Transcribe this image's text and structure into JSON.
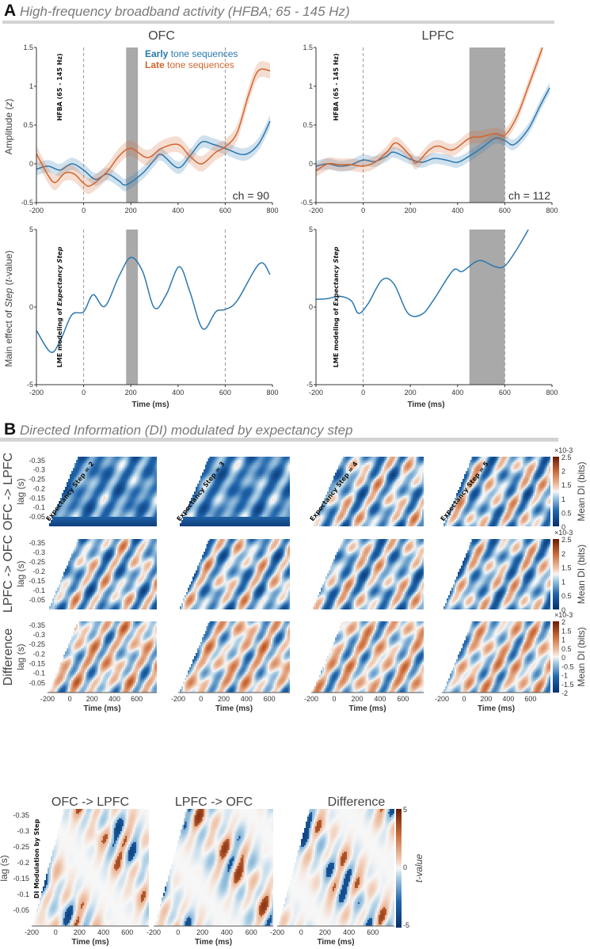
{
  "panel_a": {
    "label": "A",
    "title": "High-frequency broadband activity (HFBA; 65 - 145 Hz)",
    "legend": {
      "early_bold": "Early",
      "early_rest": " tone sequences",
      "late_bold": "Late",
      "late_rest": " tone sequences"
    },
    "ylabel_top": {
      "p1": "Amplitude (",
      "p2": "z",
      "p3": ")"
    },
    "ylabel_bottom": {
      "p1": "Main effect of ",
      "p2": "Step",
      "p3": " (",
      "p4": "t",
      "p5": "-value)"
    },
    "inset_top": "HFBA (65 - 145 Hz)",
    "inset_bottom": {
      "p1": "LME modeling of ",
      "p2": "Expectancy Step"
    },
    "xlabel": "Time (ms)"
  },
  "panel_b": {
    "label": "B",
    "title": "Directed Information (DI) modulated by expectancy step",
    "row_labels": [
      "OFC -> LPFC",
      "LPFC -> OFC",
      "Difference"
    ],
    "lag_label": "lag (s)",
    "step_labels": [
      "Expectancy Step = 2",
      "Expectancy Step = 3",
      "Expectancy Step = 4",
      "Expectancy Step = 5"
    ],
    "colorbar_label": "Mean DI (bits)",
    "colorbar_exponent": "×10-3",
    "xlabel": "Time (ms)",
    "bottom": {
      "titles": [
        "OFC -> LPFC",
        "LPFC -> OFC",
        "Difference"
      ],
      "inset": "DI Modulation by Step",
      "lag_label": "lag (s)",
      "colorbar_label": "t-value"
    }
  },
  "colors": {
    "early": "#2a78b0",
    "late": "#d2652e",
    "sig_window": "#a9a9a9",
    "dash": "#999999"
  },
  "chart_data": [
    {
      "id": "ofc_hfba",
      "type": "line",
      "title": "OFC",
      "annotation": "ch = 90",
      "xlim": [
        -200,
        800
      ],
      "ylim": [
        -0.5,
        1.5
      ],
      "xticks": [
        -200,
        0,
        200,
        400,
        600,
        800
      ],
      "yticks": [
        -0.5,
        0,
        0.5,
        1,
        1.5
      ],
      "ytick_labels": [
        "-0.5",
        "0",
        "0.5",
        "1",
        "1.5"
      ],
      "event_lines": [
        0,
        600
      ],
      "sig_window": [
        180,
        230
      ],
      "series": [
        {
          "name": "Early tone sequences",
          "color": "#2a78b0",
          "sem": 0.08,
          "x": [
            -200,
            -150,
            -100,
            -50,
            0,
            50,
            100,
            150,
            180,
            250,
            300,
            330,
            400,
            450,
            500,
            550,
            600,
            680,
            740,
            790
          ],
          "y": [
            -0.07,
            -0.03,
            -0.08,
            0.0,
            -0.08,
            -0.2,
            -0.13,
            -0.22,
            -0.27,
            -0.12,
            0.05,
            0.12,
            -0.05,
            0.1,
            0.28,
            0.25,
            0.2,
            0.12,
            0.25,
            0.55
          ]
        },
        {
          "name": "Late tone sequences",
          "color": "#d2652e",
          "sem": 0.1,
          "x": [
            -200,
            -150,
            -120,
            -80,
            -40,
            0,
            30,
            100,
            150,
            200,
            270,
            330,
            400,
            450,
            500,
            560,
            600,
            650,
            700,
            740,
            790
          ],
          "y": [
            0.13,
            -0.15,
            -0.24,
            -0.12,
            -0.13,
            -0.25,
            -0.28,
            -0.1,
            0.1,
            0.2,
            0.08,
            0.2,
            0.25,
            0.1,
            0.0,
            0.15,
            0.22,
            0.4,
            0.9,
            1.2,
            1.2
          ]
        }
      ]
    },
    {
      "id": "lpfc_hfba",
      "type": "line",
      "title": "LPFC",
      "annotation": "ch = 112",
      "xlim": [
        -200,
        800
      ],
      "ylim": [
        -0.5,
        1.5
      ],
      "xticks": [
        -200,
        0,
        200,
        400,
        600,
        800
      ],
      "yticks": [
        -0.5,
        0,
        0.5,
        1,
        1.5
      ],
      "ytick_labels": [
        "-0.5",
        "0",
        "0.5",
        "1",
        "1.5"
      ],
      "event_lines": [
        0,
        600
      ],
      "sig_window": [
        450,
        600
      ],
      "series": [
        {
          "name": "Early tone sequences",
          "color": "#2a78b0",
          "sem": 0.07,
          "x": [
            -200,
            -150,
            -100,
            -50,
            0,
            50,
            100,
            130,
            200,
            250,
            300,
            350,
            400,
            450,
            500,
            560,
            600,
            640,
            700,
            750,
            790
          ],
          "y": [
            -0.03,
            0.0,
            -0.03,
            -0.01,
            0.05,
            0.03,
            0.1,
            0.15,
            0.06,
            0.02,
            0.07,
            0.05,
            0.02,
            0.1,
            0.2,
            0.33,
            0.3,
            0.25,
            0.45,
            0.75,
            0.98
          ]
        },
        {
          "name": "Late tone sequences",
          "color": "#d2652e",
          "sem": 0.08,
          "x": [
            -200,
            -150,
            -100,
            -50,
            0,
            50,
            100,
            140,
            200,
            225,
            280,
            320,
            380,
            450,
            500,
            560,
            600,
            650,
            700,
            760
          ],
          "y": [
            -0.09,
            0.0,
            -0.01,
            -0.01,
            -0.03,
            0.02,
            0.15,
            0.27,
            0.1,
            0.01,
            0.18,
            0.23,
            0.18,
            0.33,
            0.35,
            0.39,
            0.37,
            0.6,
            1.0,
            1.5
          ]
        }
      ]
    },
    {
      "id": "ofc_lme",
      "type": "line",
      "title": "",
      "xlabel": "Time (ms)",
      "xlim": [
        -200,
        800
      ],
      "ylim": [
        -5,
        5
      ],
      "xticks": [
        -200,
        0,
        200,
        400,
        600,
        800
      ],
      "yticks": [
        -5,
        0,
        5
      ],
      "ytick_labels": [
        "-5",
        "0",
        "5"
      ],
      "event_lines": [
        0,
        600
      ],
      "sig_window": [
        180,
        230
      ],
      "series": [
        {
          "name": "Main effect of Step",
          "color": "#2a78b0",
          "sem": 0,
          "x": [
            -200,
            -140,
            -100,
            -50,
            0,
            40,
            90,
            150,
            200,
            250,
            300,
            350,
            405,
            450,
            505,
            560,
            600,
            650,
            745,
            790
          ],
          "y": [
            -1.5,
            -2.9,
            -2.2,
            -0.5,
            -0.3,
            0.8,
            0.05,
            2.0,
            3.2,
            2.3,
            -0.05,
            0.8,
            2.6,
            1.0,
            -1.4,
            -0.3,
            -0.15,
            0.4,
            2.8,
            2.1
          ]
        }
      ]
    },
    {
      "id": "lpfc_lme",
      "type": "line",
      "title": "",
      "xlabel": "Time (ms)",
      "xlim": [
        -200,
        800
      ],
      "ylim": [
        -5,
        5
      ],
      "xticks": [
        -200,
        0,
        200,
        400,
        600,
        800
      ],
      "yticks": [
        -5,
        0,
        5
      ],
      "ytick_labels": [
        "-5",
        "0",
        "5"
      ],
      "event_lines": [
        0,
        600
      ],
      "sig_window": [
        450,
        600
      ],
      "series": [
        {
          "name": "Main effect of Step",
          "color": "#2a78b0",
          "sem": 0,
          "x": [
            -200,
            -150,
            -100,
            -50,
            -20,
            20,
            80,
            130,
            190,
            250,
            300,
            380,
            420,
            490,
            560,
            600,
            650,
            700
          ],
          "y": [
            0.5,
            0.55,
            0.7,
            0.4,
            -0.4,
            0.2,
            1.75,
            1.5,
            -0.4,
            -0.45,
            0.5,
            2.35,
            2.3,
            3.0,
            2.6,
            2.65,
            3.7,
            5.0
          ]
        }
      ]
    },
    {
      "id": "di_heatmaps",
      "type": "heatmap",
      "rows": [
        "OFC -> LPFC",
        "LPFC -> OFC",
        "Difference"
      ],
      "columns": [
        "Expectancy Step = 2",
        "Expectancy Step = 3",
        "Expectancy Step = 4",
        "Expectancy Step = 5"
      ],
      "xlabel": "Time (ms)",
      "ylabel": "lag (s)",
      "xlim": [
        -200,
        780
      ],
      "ylim": [
        -0.37,
        0
      ],
      "xticks": [
        -200,
        0,
        200,
        400,
        600
      ],
      "yticks": [
        -0.35,
        -0.3,
        -0.25,
        -0.2,
        -0.15,
        -0.1,
        -0.05
      ],
      "ytick_labels": [
        "-0.35",
        "-0.3",
        "-0.25",
        "-0.2",
        "-0.15",
        "-0.1",
        "-0.05"
      ],
      "colorbars": [
        {
          "label": "Mean DI (bits)",
          "range": [
            0,
            2.5
          ],
          "ticks": [
            "2.5",
            "2",
            "1.5",
            "1",
            "0.5",
            "0"
          ]
        },
        {
          "label": "Mean DI (bits)",
          "range": [
            0,
            2.5
          ],
          "ticks": [
            "2.5",
            "2",
            "1.5",
            "1",
            "0.5",
            "0"
          ]
        },
        {
          "label": "Mean DI (bits)",
          "range": [
            -2,
            2
          ],
          "ticks": [
            "2",
            "1.5",
            "1",
            "0.5",
            "0",
            "-0.5",
            "-1",
            "-1.5",
            "-2"
          ]
        }
      ]
    },
    {
      "id": "di_modulation",
      "type": "heatmap",
      "panels": [
        "OFC -> LPFC",
        "LPFC -> OFC",
        "Difference"
      ],
      "xlabel": "Time (ms)",
      "ylabel": "lag (s)",
      "xlim": [
        -200,
        780
      ],
      "ylim": [
        -0.37,
        0
      ],
      "xticks": [
        -200,
        0,
        200,
        400,
        600
      ],
      "yticks": [
        -0.35,
        -0.3,
        -0.25,
        -0.2,
        -0.15,
        -0.1,
        -0.05
      ],
      "ytick_labels": [
        "-0.35",
        "-0.3",
        "-0.25",
        "-0.2",
        "-0.15",
        "-0.1",
        "-0.05"
      ],
      "colorbar": {
        "label": "t-value",
        "range": [
          -5,
          5
        ],
        "ticks": [
          "5",
          "0",
          "-5"
        ]
      }
    }
  ]
}
